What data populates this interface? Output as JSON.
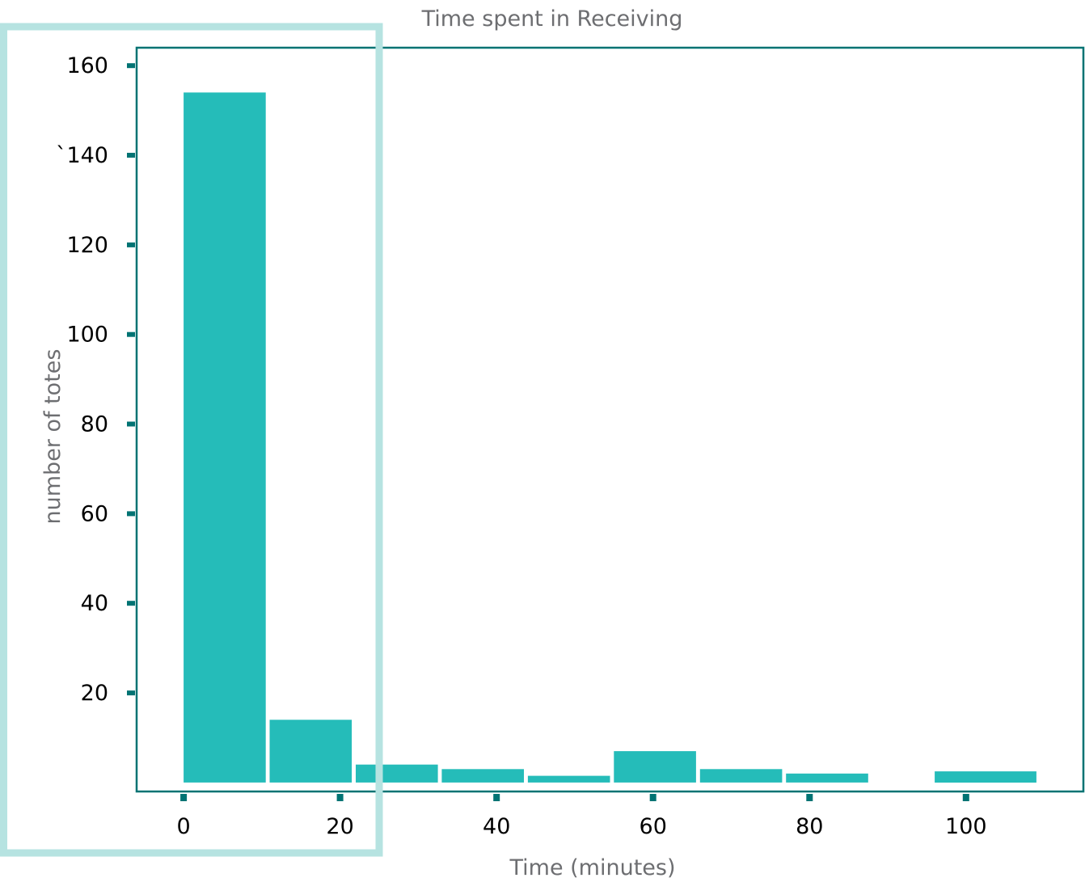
{
  "colors": {
    "bar": "#25bcb9",
    "axis": "#007373",
    "highlight": "#b6e3e1",
    "title_text": "#6d6e71",
    "tick_text": "#000000"
  },
  "chart_data": {
    "type": "bar",
    "title": "Time spent in Receiving",
    "xlabel": "Time (minutes)",
    "ylabel": "number of totes",
    "x_ticks": [
      0,
      20,
      40,
      60,
      80,
      100
    ],
    "x_tick_labels": [
      "0",
      "20",
      "40",
      "60",
      "80",
      "100"
    ],
    "y_ticks": [
      20,
      40,
      60,
      80,
      100,
      120,
      140,
      160
    ],
    "y_tick_labels": [
      "20",
      "40",
      "60",
      "80",
      "100",
      "120",
      "`140",
      "160"
    ],
    "bars": [
      {
        "x_start": 0,
        "x_end": 10.5,
        "value": 154
      },
      {
        "x_start": 11,
        "x_end": 21.5,
        "value": 14
      },
      {
        "x_start": 22,
        "x_end": 32.5,
        "value": 4
      },
      {
        "x_start": 33,
        "x_end": 43.5,
        "value": 3
      },
      {
        "x_start": 44,
        "x_end": 54.5,
        "value": 1.5
      },
      {
        "x_start": 55,
        "x_end": 65.5,
        "value": 7
      },
      {
        "x_start": 66,
        "x_end": 76.5,
        "value": 3
      },
      {
        "x_start": 77,
        "x_end": 87.5,
        "value": 2
      },
      {
        "x_start": 96,
        "x_end": 109,
        "value": 2.5
      }
    ],
    "xlim": [
      -6,
      115
    ],
    "ylim": [
      -2,
      164
    ],
    "grid": false,
    "highlight_range_x": [
      -23,
      25
    ]
  }
}
